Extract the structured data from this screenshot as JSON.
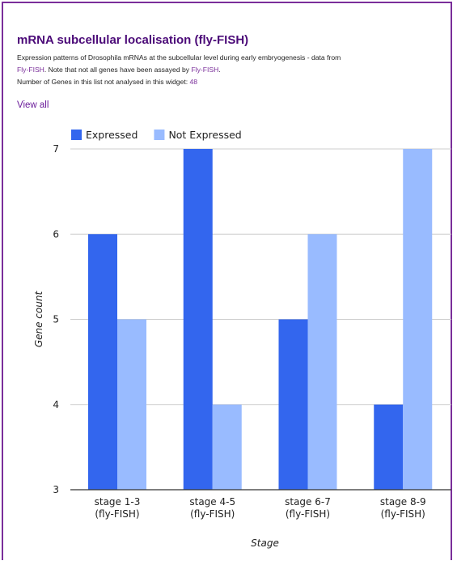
{
  "widget": {
    "title": "mRNA subcellular localisation (fly-FISH)",
    "description_part1": "Expression patterns of Drosophila mRNAs at the subcellular level during early embryogenesis - data from",
    "link1": "Fly-FISH",
    "description_part2": ". Note that not all genes have been assayed by",
    "link2": "Fly-FISH",
    "description_part3": ".",
    "not_analysed_label": "Number of Genes in this list not analysed in this widget:",
    "not_analysed_count": "48",
    "view_all": "View all"
  },
  "colors": {
    "accent": "#6a1b9a",
    "expressed": "#3366ee",
    "not_expressed": "#99bbff"
  },
  "chart_data": {
    "type": "bar",
    "categories": [
      [
        "stage 1-3",
        "(fly-FISH)"
      ],
      [
        "stage 4-5",
        "(fly-FISH)"
      ],
      [
        "stage 6-7",
        "(fly-FISH)"
      ],
      [
        "stage 8-9",
        "(fly-FISH)"
      ]
    ],
    "series": [
      {
        "name": "Expressed",
        "values": [
          6,
          7,
          5,
          4
        ],
        "color": "#3366ee"
      },
      {
        "name": "Not Expressed",
        "values": [
          5,
          4,
          6,
          7
        ],
        "color": "#99bbff"
      }
    ],
    "xlabel": "Stage",
    "ylabel": "Gene count",
    "ylim": [
      3,
      7
    ],
    "yticks": [
      3,
      4,
      5,
      6,
      7
    ],
    "grid": true,
    "legend": "top-left"
  }
}
